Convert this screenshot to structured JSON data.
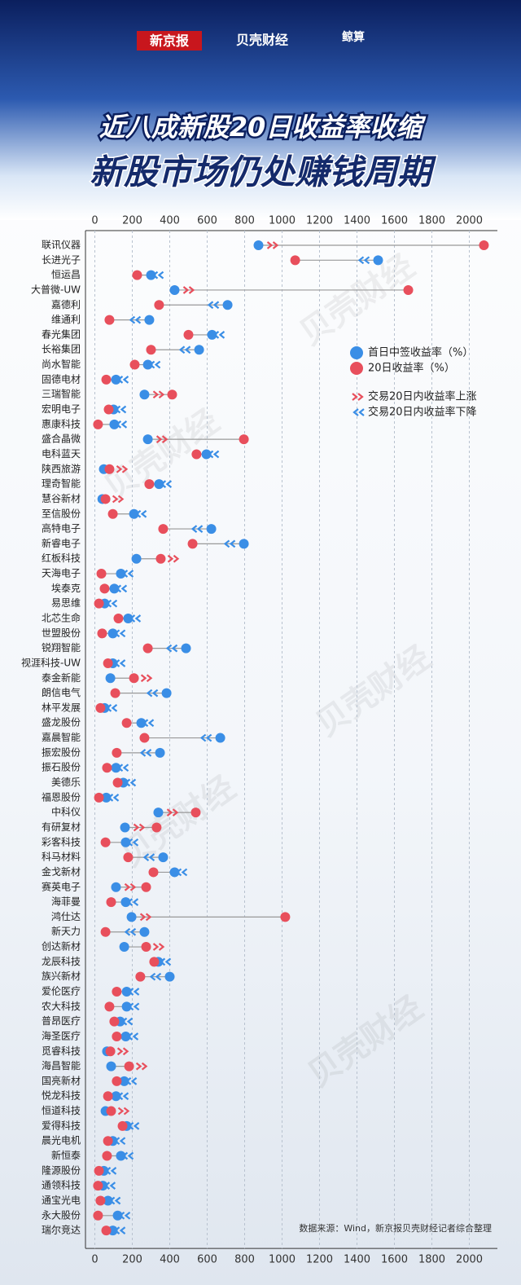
{
  "brands": [
    "新京报",
    "贝壳财经",
    "鲸算"
  ],
  "chart_data": {
    "type": "dumbbell",
    "title": "近八成新股20日收益率收缩",
    "subtitle": "新股市场仍处赚钱周期",
    "source": "数据来源：Wind，新京报贝壳财经记者综合整理",
    "watermark": "贝壳财经",
    "categories": [
      "联讯仪器",
      "长进光子",
      "恒运昌",
      "大普微-UW",
      "嘉德利",
      "维通利",
      "春光集团",
      "长裕集团",
      "尚水智能",
      "固德电材",
      "三瑞智能",
      "宏明电子",
      "惠康科技",
      "盛合晶微",
      "电科蓝天",
      "陕西旅游",
      "理奇智能",
      "慧谷新材",
      "至信股份",
      "高特电子",
      "新睿电子",
      "红板科技",
      "天海电子",
      "埃泰克",
      "易思维",
      "北芯生命",
      "世盟股份",
      "锐翔智能",
      "视涯科技-UW",
      "泰金新能",
      "朗信电气",
      "林平发展",
      "盛龙股份",
      "嘉晨智能",
      "振宏股份",
      "振石股份",
      "美德乐",
      "福恩股份",
      "中科仪",
      "有研复材",
      "彩客科技",
      "科马材料",
      "金戈新材",
      "赛英电子",
      "海菲曼",
      "鸿仕达",
      "新天力",
      "创达新材",
      "龙辰科技",
      "族兴新材",
      "爱伦医疗",
      "农大科技",
      "普昂医疗",
      "海圣医疗",
      "觅睿科技",
      "海昌智能",
      "国亮新材",
      "悦龙科技",
      "恒道科技",
      "爱得科技",
      "晨光电机",
      "新恒泰",
      "隆源股份",
      "通领科技",
      "通宝光电",
      "永大股份",
      "瑞尔竞达"
    ],
    "series": [
      {
        "name": "首日中签收益率（%）",
        "color": "#3a8ee6",
        "values": [
          874,
          1513,
          300,
          426,
          709,
          291,
          626,
          557,
          283,
          113,
          265,
          100,
          104,
          283,
          596,
          48,
          343,
          40,
          209,
          622,
          796,
          222,
          139,
          104,
          52,
          178,
          96,
          487,
          96,
          83,
          383,
          52,
          248,
          670,
          348,
          113,
          152,
          61,
          339,
          161,
          165,
          365,
          426,
          113,
          165,
          196,
          265,
          157,
          339,
          400,
          170,
          170,
          135,
          165,
          65,
          87,
          157,
          113,
          57,
          170,
          96,
          139,
          48,
          43,
          70,
          122,
          96
        ]
      },
      {
        "name": "20日收益率（%）",
        "color": "#e84f5c",
        "values": [
          2078,
          1070,
          226,
          1674,
          343,
          78,
          500,
          300,
          213,
          61,
          413,
          74,
          17,
          796,
          543,
          78,
          291,
          57,
          96,
          365,
          522,
          352,
          35,
          52,
          22,
          126,
          39,
          283,
          70,
          209,
          109,
          30,
          170,
          265,
          117,
          65,
          122,
          22,
          539,
          330,
          57,
          178,
          313,
          274,
          87,
          1017,
          57,
          274,
          317,
          243,
          117,
          78,
          104,
          117,
          83,
          183,
          117,
          70,
          87,
          148,
          70,
          65,
          22,
          17,
          30,
          17,
          61
        ]
      }
    ],
    "change_legend": [
      {
        "label": "交易20日内收益率上涨",
        "color": "#e84f5c"
      },
      {
        "label": "交易20日内收益率下降",
        "color": "#3a8ee6"
      }
    ],
    "xlim": [
      -50,
      2150
    ],
    "xticks": [
      0,
      200,
      400,
      600,
      800,
      1000,
      1200,
      1400,
      1600,
      1800,
      2000
    ],
    "grid": true
  }
}
